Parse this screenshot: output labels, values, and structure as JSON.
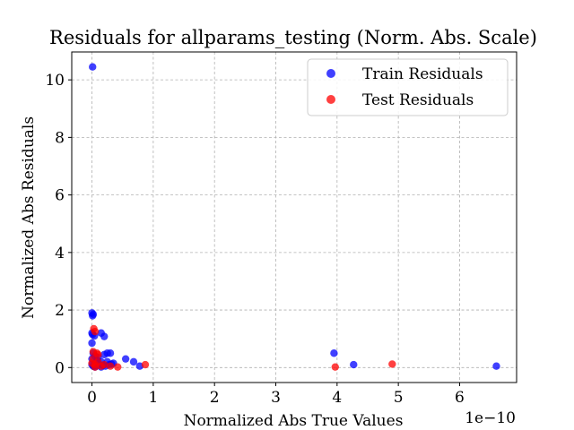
{
  "chart_data": {
    "type": "scatter",
    "title": "Residuals for allparams_testing (Norm. Abs. Scale)",
    "xlabel": "Normalized Abs True Values",
    "ylabel": "Normalized Abs Residuals",
    "x_offset_text": "1e−10",
    "x_scale_factor": 1e-10,
    "xlim": [
      -0.33,
      6.93
    ],
    "ylim": [
      -0.52,
      10.97
    ],
    "xticks": [
      0,
      1,
      2,
      3,
      4,
      5,
      6
    ],
    "yticks": [
      0,
      2,
      4,
      6,
      8,
      10
    ],
    "grid": true,
    "legend": "top-right",
    "series": [
      {
        "name": "Train Residuals",
        "color": "#0000ff",
        "points": [
          [
            0.01,
            10.45
          ],
          [
            0.0,
            1.9
          ],
          [
            0.01,
            1.8
          ],
          [
            0.02,
            1.85
          ],
          [
            0.0,
            1.2
          ],
          [
            0.01,
            1.15
          ],
          [
            0.04,
            1.1
          ],
          [
            0.0,
            0.85
          ],
          [
            0.15,
            1.2
          ],
          [
            0.2,
            1.08
          ],
          [
            0.02,
            0.5
          ],
          [
            0.05,
            0.4
          ],
          [
            0.1,
            0.35
          ],
          [
            0.08,
            0.25
          ],
          [
            0.2,
            0.45
          ],
          [
            0.25,
            0.5
          ],
          [
            0.3,
            0.5
          ],
          [
            0.35,
            0.15
          ],
          [
            0.25,
            0.2
          ],
          [
            0.15,
            0.2
          ],
          [
            0.0,
            0.3
          ],
          [
            0.05,
            0.15
          ],
          [
            0.12,
            0.1
          ],
          [
            0.18,
            0.08
          ],
          [
            0.22,
            0.05
          ],
          [
            0.28,
            0.1
          ],
          [
            0.32,
            0.12
          ],
          [
            0.02,
            0.05
          ],
          [
            0.05,
            0.02
          ],
          [
            0.08,
            0.08
          ],
          [
            0.0,
            0.1
          ],
          [
            0.15,
            0.02
          ],
          [
            0.55,
            0.3
          ],
          [
            0.68,
            0.2
          ],
          [
            0.78,
            0.05
          ],
          [
            3.95,
            0.5
          ],
          [
            4.27,
            0.1
          ],
          [
            6.6,
            0.05
          ]
        ]
      },
      {
        "name": "Test Residuals",
        "color": "#ff0000",
        "points": [
          [
            0.03,
            1.35
          ],
          [
            0.05,
            1.25
          ],
          [
            0.02,
            0.55
          ],
          [
            0.08,
            0.5
          ],
          [
            0.1,
            0.45
          ],
          [
            0.0,
            0.15
          ],
          [
            0.05,
            0.1
          ],
          [
            0.1,
            0.2
          ],
          [
            0.15,
            0.05
          ],
          [
            0.05,
            0.02
          ],
          [
            0.2,
            0.1
          ],
          [
            0.3,
            0.05
          ],
          [
            0.02,
            0.3
          ],
          [
            0.42,
            0.02
          ],
          [
            0.87,
            0.1
          ],
          [
            3.97,
            0.02
          ],
          [
            4.9,
            0.12
          ]
        ]
      }
    ]
  }
}
